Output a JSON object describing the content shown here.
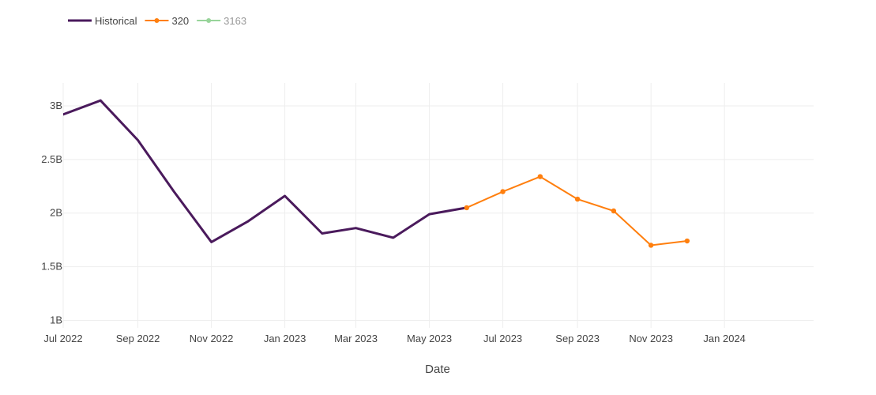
{
  "chart_data": {
    "type": "line",
    "xlabel": "Date",
    "ylabel": "",
    "x_ticks": [
      "Jul 2022",
      "Sep 2022",
      "Nov 2022",
      "Jan 2023",
      "Mar 2023",
      "May 2023",
      "Jul 2023",
      "Sep 2023",
      "Nov 2023",
      "Jan 2024"
    ],
    "y_ticks": [
      "1B",
      "1.5B",
      "2B",
      "2.5B",
      "3B"
    ],
    "xlim": [
      "2022-07-01",
      "2024-03-15"
    ],
    "ylim": [
      0.93,
      3.25
    ],
    "y_unit": "billions",
    "grid": true,
    "legend_position": "top-left",
    "series": [
      {
        "name": "Historical",
        "color": "#4a1a5c",
        "markers": false,
        "points": [
          [
            "2022-06-15",
            2.86
          ],
          [
            "2022-07-01",
            2.92
          ],
          [
            "2022-08-01",
            3.05
          ],
          [
            "2022-09-01",
            2.68
          ],
          [
            "2022-10-01",
            2.2
          ],
          [
            "2022-11-01",
            1.73
          ],
          [
            "2022-12-01",
            1.92
          ],
          [
            "2023-01-01",
            2.16
          ],
          [
            "2023-02-01",
            1.81
          ],
          [
            "2023-03-01",
            1.86
          ],
          [
            "2023-04-01",
            1.77
          ],
          [
            "2023-05-01",
            1.99
          ],
          [
            "2023-06-01",
            2.05
          ]
        ]
      },
      {
        "name": "320",
        "color": "#ff7f0e",
        "markers": true,
        "points": [
          [
            "2023-06-01",
            2.05
          ],
          [
            "2023-07-01",
            2.2
          ],
          [
            "2023-08-01",
            2.34
          ],
          [
            "2023-09-01",
            2.13
          ],
          [
            "2023-10-01",
            2.02
          ],
          [
            "2023-11-01",
            1.7
          ],
          [
            "2023-12-01",
            1.74
          ]
        ]
      },
      {
        "name": "3163",
        "color": "#98d49a",
        "markers": true,
        "legend_only": true,
        "points": []
      }
    ]
  }
}
